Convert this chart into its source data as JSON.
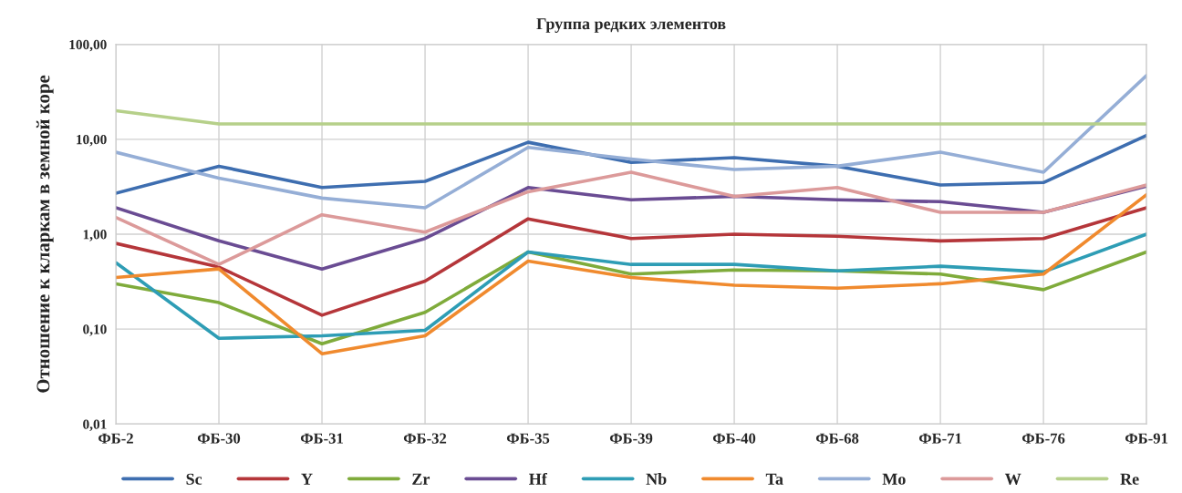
{
  "chart_data": {
    "type": "line",
    "title": "Группа редких элементов",
    "ylabel": "Отношение к кларкам в земной коре",
    "categories": [
      "ФБ-2",
      "ФБ-30",
      "ФБ-31",
      "ФБ-32",
      "ФБ-35",
      "ФБ-39",
      "ФБ-40",
      "ФБ-68",
      "ФБ-71",
      "ФБ-76",
      "ФБ-91"
    ],
    "series": [
      {
        "name": "Sc",
        "color": "#3e6eb0",
        "values": [
          2.7,
          5.2,
          3.1,
          3.6,
          9.3,
          5.7,
          6.4,
          5.2,
          3.3,
          3.5,
          11
        ]
      },
      {
        "name": "Y",
        "color": "#b5363a",
        "values": [
          0.8,
          0.45,
          0.14,
          0.32,
          1.45,
          0.9,
          1.0,
          0.95,
          0.85,
          0.9,
          1.9
        ]
      },
      {
        "name": "Zr",
        "color": "#7fab3b",
        "values": [
          0.3,
          0.19,
          0.07,
          0.15,
          0.65,
          0.38,
          0.42,
          0.41,
          0.38,
          0.26,
          0.65
        ]
      },
      {
        "name": "Hf",
        "color": "#6a4c93",
        "values": [
          1.9,
          0.85,
          0.43,
          0.9,
          3.1,
          2.3,
          2.5,
          2.3,
          2.2,
          1.7,
          3.2
        ]
      },
      {
        "name": "Nb",
        "color": "#2e9db5",
        "values": [
          0.5,
          0.08,
          0.085,
          0.097,
          0.65,
          0.48,
          0.48,
          0.41,
          0.46,
          0.4,
          1.0
        ]
      },
      {
        "name": "Ta",
        "color": "#f08a2e",
        "values": [
          0.35,
          0.43,
          0.055,
          0.085,
          0.52,
          0.35,
          0.29,
          0.27,
          0.3,
          0.38,
          2.6
        ]
      },
      {
        "name": "Mo",
        "color": "#95aed6",
        "values": [
          7.3,
          3.9,
          2.4,
          1.9,
          8.2,
          6.2,
          4.8,
          5.2,
          7.3,
          4.5,
          47
        ]
      },
      {
        "name": "W",
        "color": "#dc9a9a",
        "values": [
          1.5,
          0.48,
          1.6,
          1.05,
          2.8,
          4.5,
          2.5,
          3.1,
          1.7,
          1.7,
          3.3
        ]
      },
      {
        "name": "Re",
        "color": "#b6d08a",
        "values": [
          20,
          14.5,
          14.5,
          14.5,
          14.5,
          14.5,
          14.5,
          14.5,
          14.5,
          14.5,
          14.5
        ]
      }
    ],
    "log": "y",
    "ylim": [
      0.01,
      100
    ],
    "yticks": [
      {
        "value": 0.01,
        "label": "0,01"
      },
      {
        "value": 0.1,
        "label": "0,10"
      },
      {
        "value": 1,
        "label": "1,00"
      },
      {
        "value": 10,
        "label": "10,00"
      },
      {
        "value": 100,
        "label": "100,00"
      }
    ],
    "grid": true,
    "legend": "bottom",
    "marker": "none",
    "line_style": "solid"
  }
}
